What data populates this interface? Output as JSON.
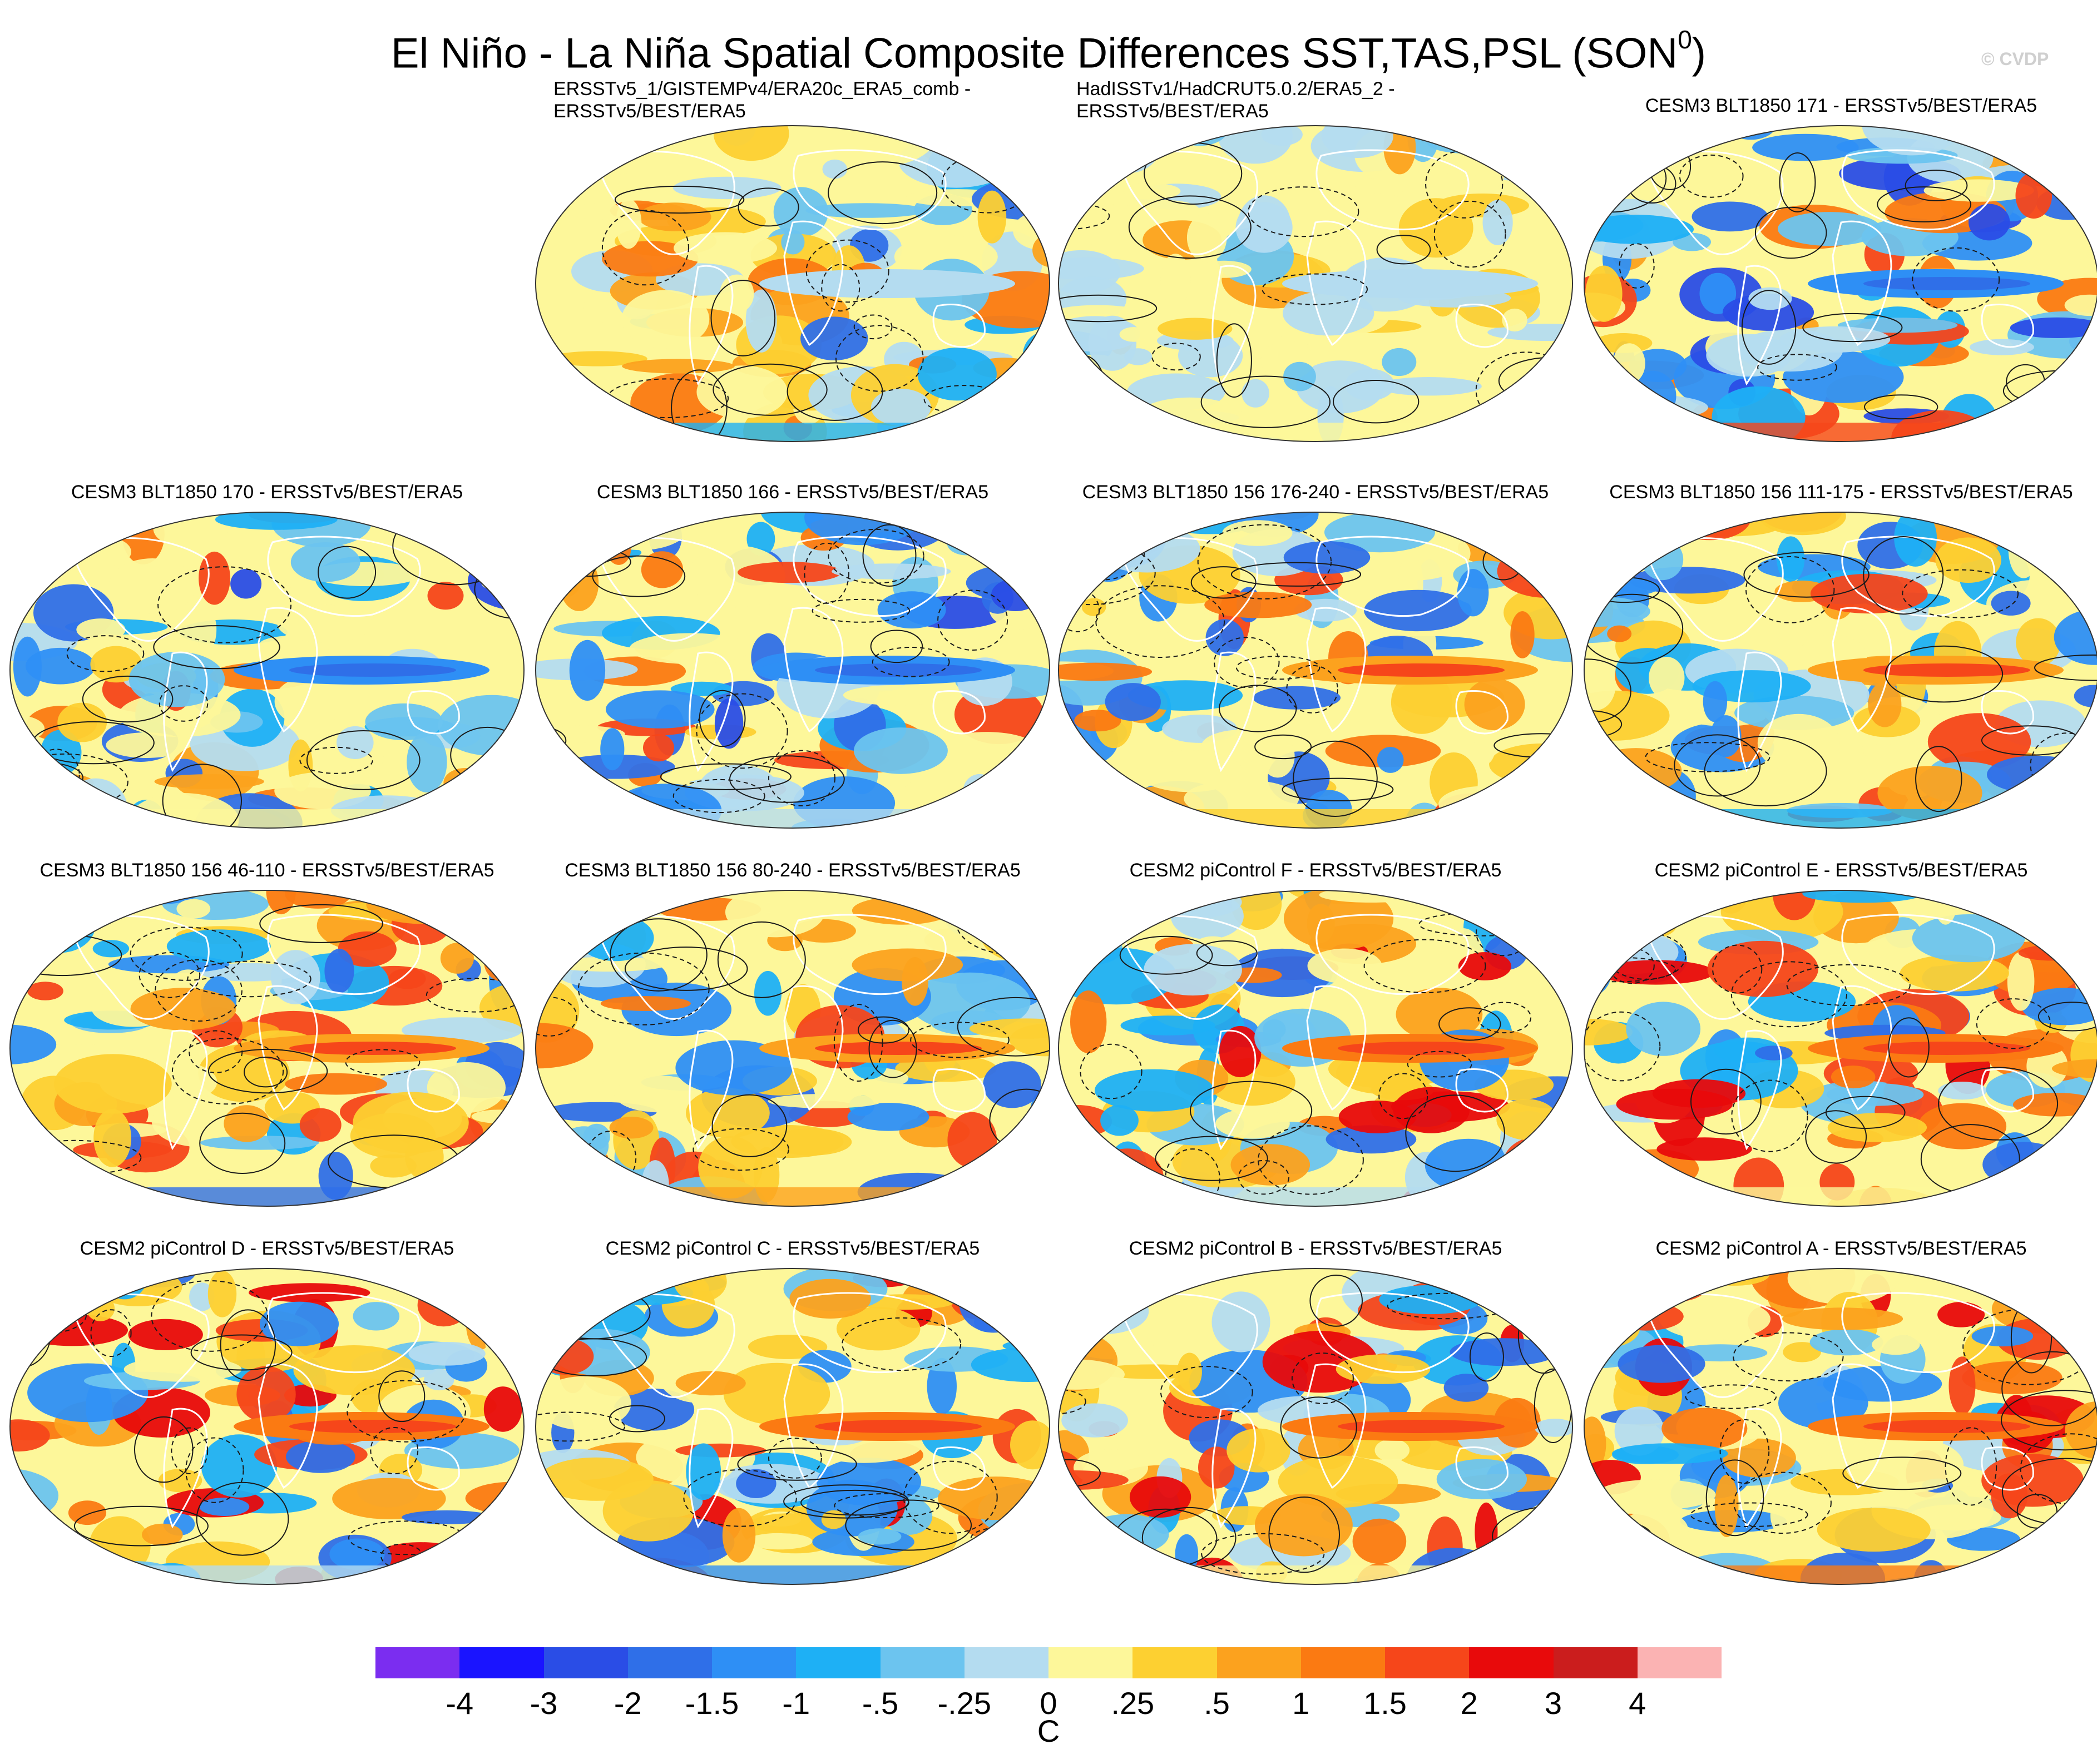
{
  "title_main": "El Niño - La Niña Spatial Composite Differences SST,TAS,PSL (SON",
  "title_sup": "0",
  "title_close": ")",
  "watermark": "© CVDP",
  "panels": [
    {
      "line1": "ERSSTv5_1/GISTEMPv4/ERA20c_ERA5_comb -",
      "line2": "ERSSTv5/BEST/ERA5",
      "mode": "obs",
      "seed": 11
    },
    {
      "line1": "HadISSTv1/HadCRUT5.0.2/ERA5_2 -",
      "line2": "ERSSTv5/BEST/ERA5",
      "mode": "obs2",
      "seed": 23
    },
    {
      "line1": "CESM3 BLT1850 171 - ERSSTv5/BEST/ERA5",
      "line2": "",
      "mode": "cold",
      "seed": 37
    },
    {
      "line1": "CESM3 BLT1850 170 - ERSSTv5/BEST/ERA5",
      "line2": "",
      "mode": "cold",
      "seed": 41
    },
    {
      "line1": "CESM3 BLT1850 166 - ERSSTv5/BEST/ERA5",
      "line2": "",
      "mode": "cold",
      "seed": 53
    },
    {
      "line1": "CESM3 BLT1850 156 176-240 - ERSSTv5/BEST/ERA5",
      "line2": "",
      "mode": "mixed",
      "seed": 67
    },
    {
      "line1": "CESM3 BLT1850 156 111-175 - ERSSTv5/BEST/ERA5",
      "line2": "",
      "mode": "mixed",
      "seed": 71
    },
    {
      "line1": "CESM3 BLT1850 156 46-110 - ERSSTv5/BEST/ERA5",
      "line2": "",
      "mode": "mixed",
      "seed": 83
    },
    {
      "line1": "CESM3 BLT1850 156 80-240 - ERSSTv5/BEST/ERA5",
      "line2": "",
      "mode": "mixed",
      "seed": 97
    },
    {
      "line1": "CESM2 piControl F - ERSSTv5/BEST/ERA5",
      "line2": "",
      "mode": "warm",
      "seed": 101
    },
    {
      "line1": "CESM2 piControl E - ERSSTv5/BEST/ERA5",
      "line2": "",
      "mode": "warm",
      "seed": 113
    },
    {
      "line1": "CESM2 piControl D - ERSSTv5/BEST/ERA5",
      "line2": "",
      "mode": "warm",
      "seed": 127
    },
    {
      "line1": "CESM2 piControl C - ERSSTv5/BEST/ERA5",
      "line2": "",
      "mode": "warm",
      "seed": 131
    },
    {
      "line1": "CESM2 piControl B - ERSSTv5/BEST/ERA5",
      "line2": "",
      "mode": "warm",
      "seed": 139
    },
    {
      "line1": "CESM2 piControl A - ERSSTv5/BEST/ERA5",
      "line2": "",
      "mode": "warm",
      "seed": 149
    }
  ],
  "colorbar": {
    "colors": [
      "#7b2df0",
      "#1a14ff",
      "#2a4de6",
      "#2f6fe8",
      "#2e8ff5",
      "#1eb0f5",
      "#6cc4ef",
      "#b4dcf0",
      "#fdf79a",
      "#fdd031",
      "#fca21e",
      "#fb7a12",
      "#f6461a",
      "#e80a0b",
      "#cb1d1d",
      "#fbb3b3"
    ],
    "ticks": [
      "-4",
      "-3",
      "-2",
      "-1.5",
      "-1",
      "-.5",
      "-.25",
      "0",
      ".25",
      ".5",
      "1",
      "1.5",
      "2",
      "3",
      "4"
    ],
    "unit": "C"
  }
}
